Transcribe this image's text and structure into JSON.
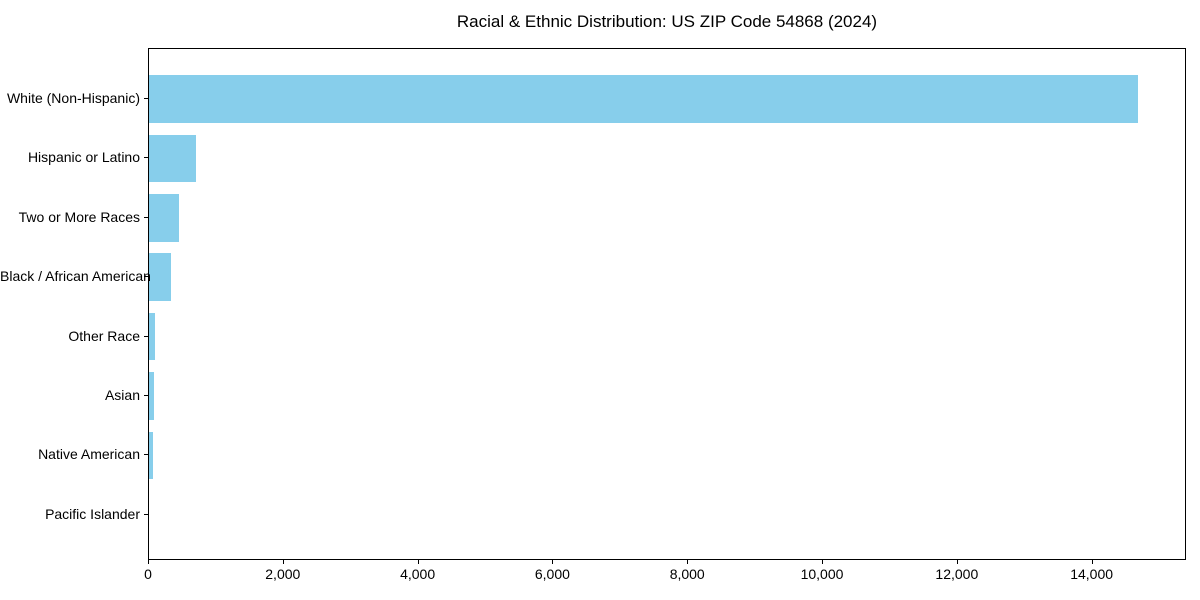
{
  "chart_data": {
    "type": "bar",
    "orientation": "horizontal",
    "title": "Racial & Ethnic Distribution: US ZIP Code 54868 (2024)",
    "categories": [
      "White (Non-Hispanic)",
      "Hispanic or Latino",
      "Two or More Races",
      "Black / African American",
      "Other Race",
      "Asian",
      "Native American",
      "Pacific Islander"
    ],
    "values": [
      14680,
      690,
      440,
      330,
      90,
      75,
      55,
      0
    ],
    "title_text_color": "#000000",
    "bar_color": "#87CEEB",
    "xlabel": "",
    "ylabel": "",
    "xlim": [
      0,
      15400
    ],
    "xticks": [
      0,
      2000,
      4000,
      6000,
      8000,
      10000,
      12000,
      14000
    ],
    "xtick_labels": [
      "0",
      "2,000",
      "4,000",
      "6,000",
      "8,000",
      "10,000",
      "12,000",
      "14,000"
    ],
    "grid": false,
    "legend_position": "none",
    "spines": "full-box"
  }
}
